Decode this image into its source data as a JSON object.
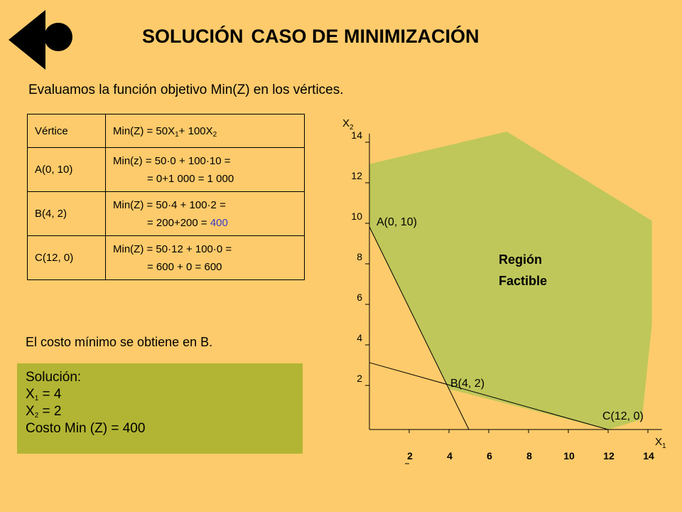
{
  "title": {
    "word1": "SOLUCIÓN",
    "rest": "CASO DE MINIMIZACIÓN"
  },
  "subtitle": "Evaluamos la función objetivo Min(Z) en los vértices.",
  "table": {
    "header": {
      "col1": "Vértice",
      "col2_prefix": "Min(Z) = 50X",
      "col2_sub1": "1",
      "col2_mid": "+ 100X",
      "col2_sub2": "2"
    },
    "rows": [
      {
        "vertex": "A(0, 10)",
        "line1": "Min(z) = 50·0 + 100·10 =",
        "line2_prefix": "= 0+1 000 = ",
        "line2_value": "1 000"
      },
      {
        "vertex": "B(4, 2)",
        "line1": "Min(Z) = 50·4 + 100·2 =",
        "line2_prefix": "= 200+200 = ",
        "line2_value": "400"
      },
      {
        "vertex": "C(12, 0)",
        "line1": "Min(Z) = 50·12 + 100·0 =",
        "line2_prefix": "= 600 + 0 = ",
        "line2_value": "600"
      }
    ]
  },
  "conclusion": "El costo mínimo se obtiene en B.",
  "solution": {
    "heading": "Solución:",
    "x1_label": "X",
    "x1_sub": "1",
    "x1_value": " = 4",
    "x2_label": "X",
    "x2_sub": "2",
    "x2_value": " =  2",
    "cost": "Costo Min (Z) = 400"
  },
  "colors": {
    "background": "#fdcb6b",
    "feasible_region": "#bfc75a",
    "solution_box": "#b2b533",
    "highlight_value": "#3b3bc9"
  },
  "chart_data": {
    "type": "line",
    "x_axis": {
      "label": "X",
      "label_sub": "1",
      "ticks": [
        2,
        4,
        6,
        8,
        10,
        12,
        14
      ]
    },
    "y_axis": {
      "label": "X",
      "label_sub": "2",
      "ticks": [
        2,
        4,
        6,
        8,
        10,
        12,
        14
      ]
    },
    "feasible_region": {
      "label_line1": "Región",
      "label_line2": "Factible",
      "polygon": [
        [
          0,
          10
        ],
        [
          4,
          2
        ],
        [
          12,
          0
        ],
        [
          13.7,
          0.5
        ],
        [
          14.2,
          5.2
        ],
        [
          14.2,
          10.3
        ],
        [
          6.9,
          14.7
        ],
        [
          0,
          13.1
        ]
      ]
    },
    "constraint_lines": [
      {
        "from": [
          0,
          10
        ],
        "to": [
          5,
          0
        ]
      },
      {
        "from": [
          0,
          3.3
        ],
        "to": [
          12,
          0
        ]
      }
    ],
    "points": [
      {
        "name": "A(0, 10)",
        "x": 0,
        "y": 10
      },
      {
        "name": "B(4, 2)",
        "x": 4,
        "y": 2
      },
      {
        "name": "C(12, 0)",
        "x": 12,
        "y": 0
      }
    ]
  }
}
